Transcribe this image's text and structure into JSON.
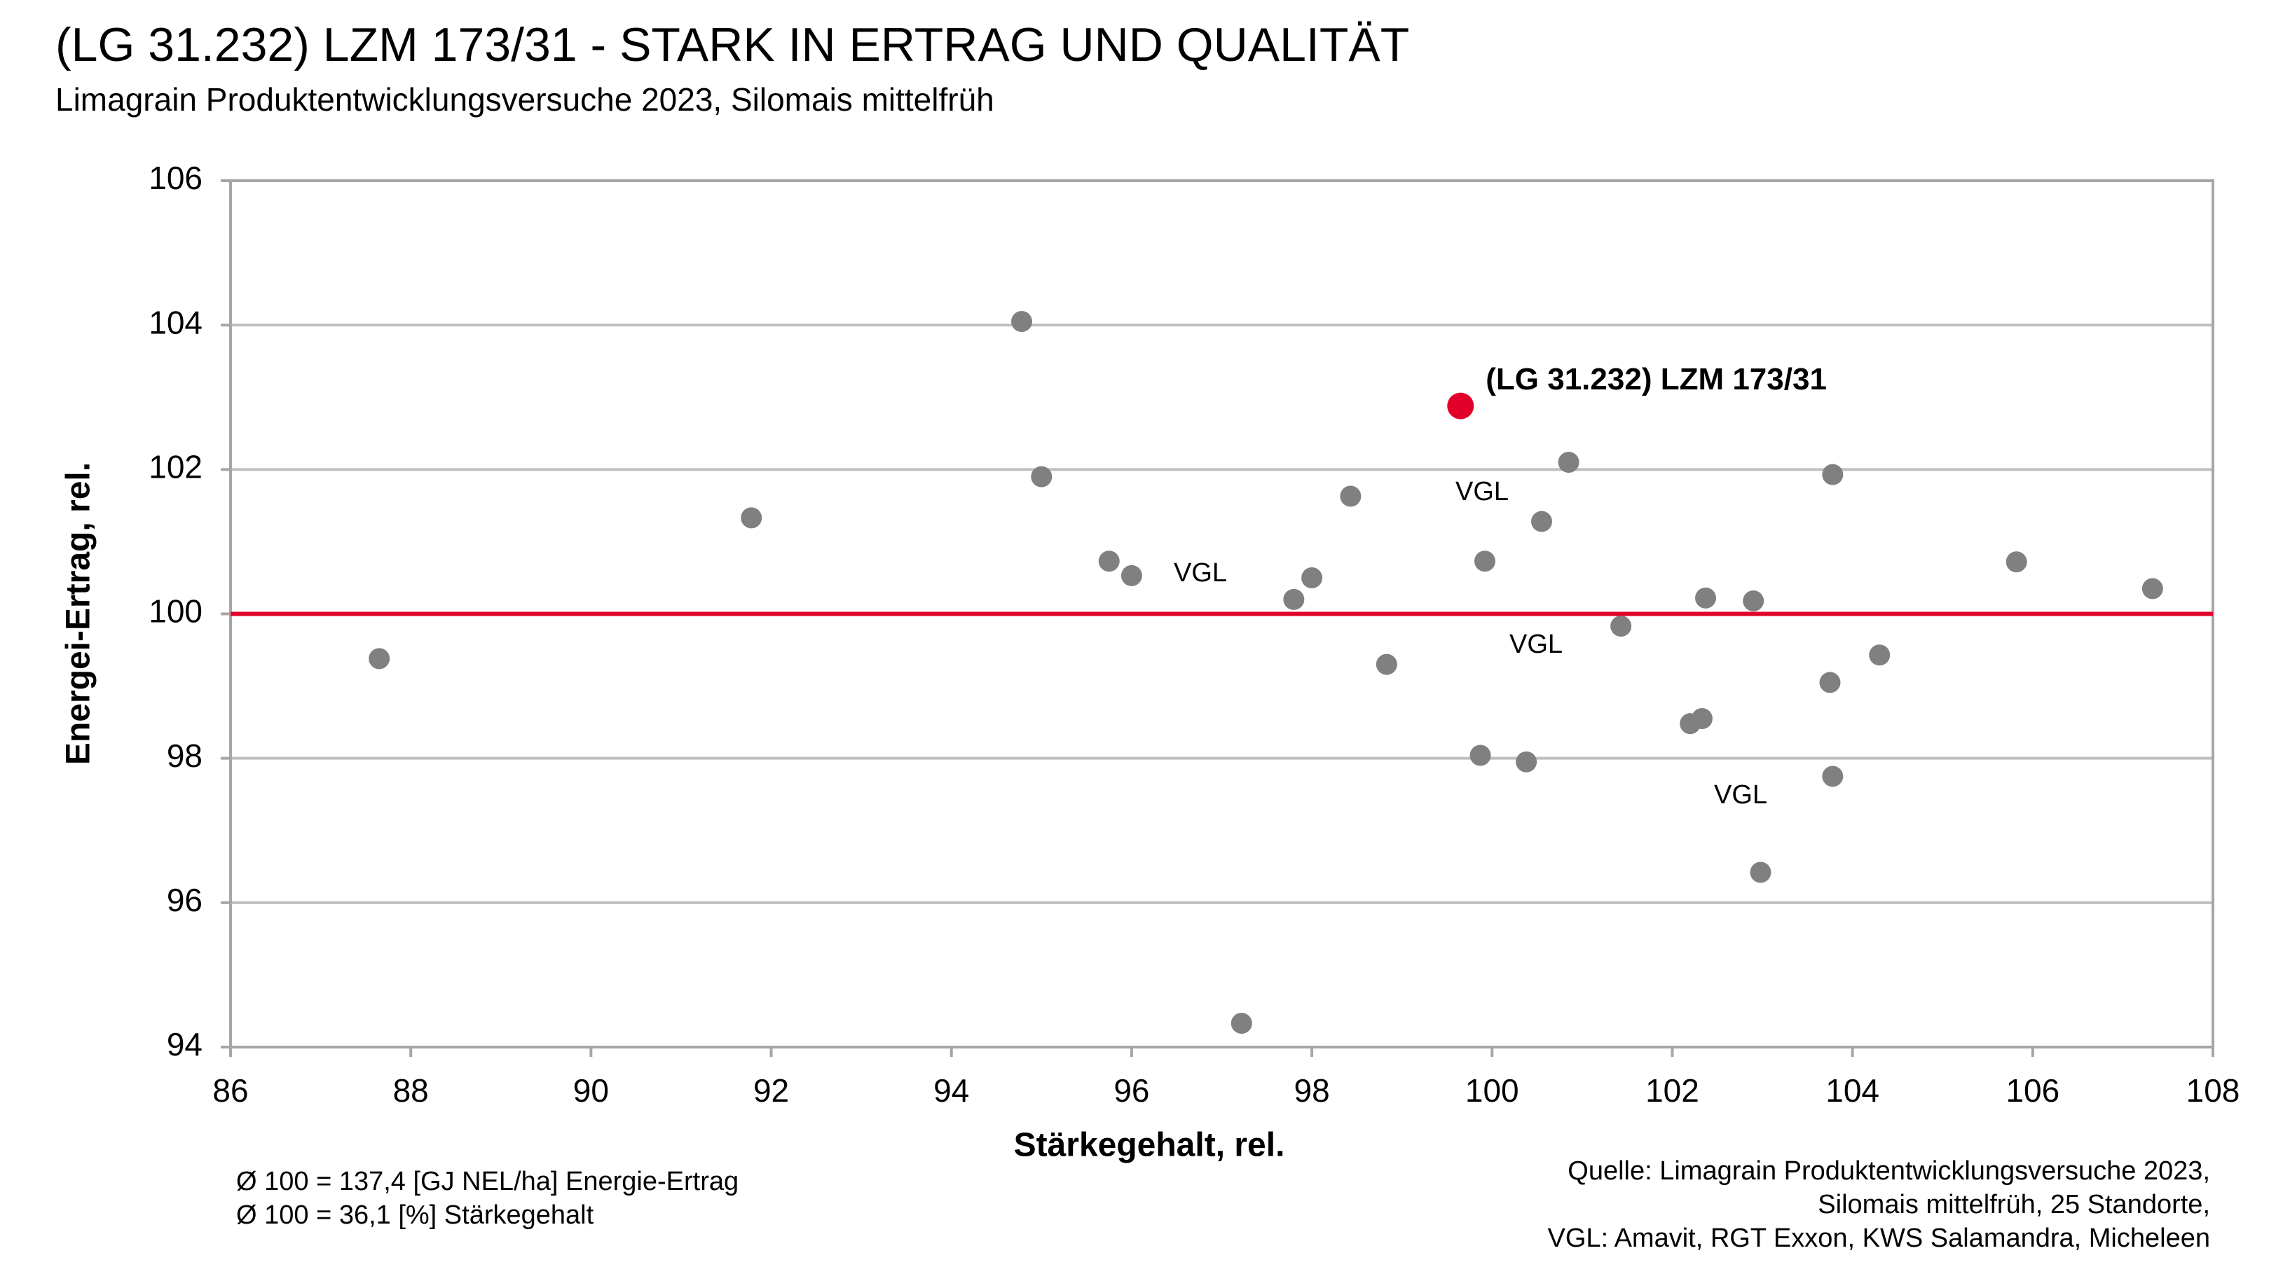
{
  "chart_data": {
    "type": "scatter",
    "title": "(LG 31.232) LZM 173/31 - STARK IN ERTRAG UND QUALITÄT",
    "subtitle": "Limagrain Produktentwicklungsversuche 2023, Silomais mittelfrüh",
    "x_label": "Stärkegehalt, rel.",
    "y_label": "Energei-Ertrag, rel.",
    "xlim": [
      86,
      108
    ],
    "xticks": [
      86,
      88,
      90,
      92,
      94,
      96,
      98,
      100,
      102,
      104,
      106,
      108
    ],
    "ylim": [
      94,
      106
    ],
    "yticks": [
      94,
      96,
      98,
      100,
      102,
      104,
      106
    ],
    "grid": true,
    "reference_line": {
      "value": 100,
      "color": "#e0002a"
    },
    "series": [
      {
        "color": "#808080",
        "x": [
          87.65,
          91.78,
          94.78,
          95.0,
          95.75,
          96.0,
          97.22,
          97.8,
          98.0,
          98.43,
          98.83,
          99.87,
          99.92,
          100.38,
          100.55,
          100.85,
          101.43,
          102.2,
          102.33,
          102.37,
          102.9,
          102.98,
          103.75,
          103.78,
          103.78,
          104.3,
          105.82,
          107.33
        ],
        "values": [
          99.38,
          101.33,
          104.05,
          101.9,
          100.73,
          100.53,
          94.33,
          100.2,
          100.5,
          101.63,
          99.3,
          98.04,
          100.73,
          97.95,
          101.28,
          102.1,
          99.83,
          98.48,
          98.55,
          100.22,
          100.18,
          96.42,
          99.05,
          101.93,
          97.75,
          99.43,
          100.72,
          100.35
        ]
      },
      {
        "name": "(LG 31.232) LZM 173/31",
        "color": "#e0002a",
        "x": [
          99.65
        ],
        "values": [
          102.88
        ]
      }
    ],
    "annotations": [
      "VGL",
      "VGL",
      "VGL",
      "VGL"
    ],
    "notes_left": [
      "Ø 100 = 137,4 [GJ NEL/ha] Energie-Ertrag",
      "Ø 100 = 36,1 [%] Stärkegehalt"
    ],
    "notes_right": [
      "Quelle: Limagrain Produktentwicklungsversuche 2023,",
      "Silomais mittelfrüh, 25 Standorte,",
      "VGL: Amavit, RGT Exxon, KWS Salamandra, Micheleen"
    ]
  }
}
